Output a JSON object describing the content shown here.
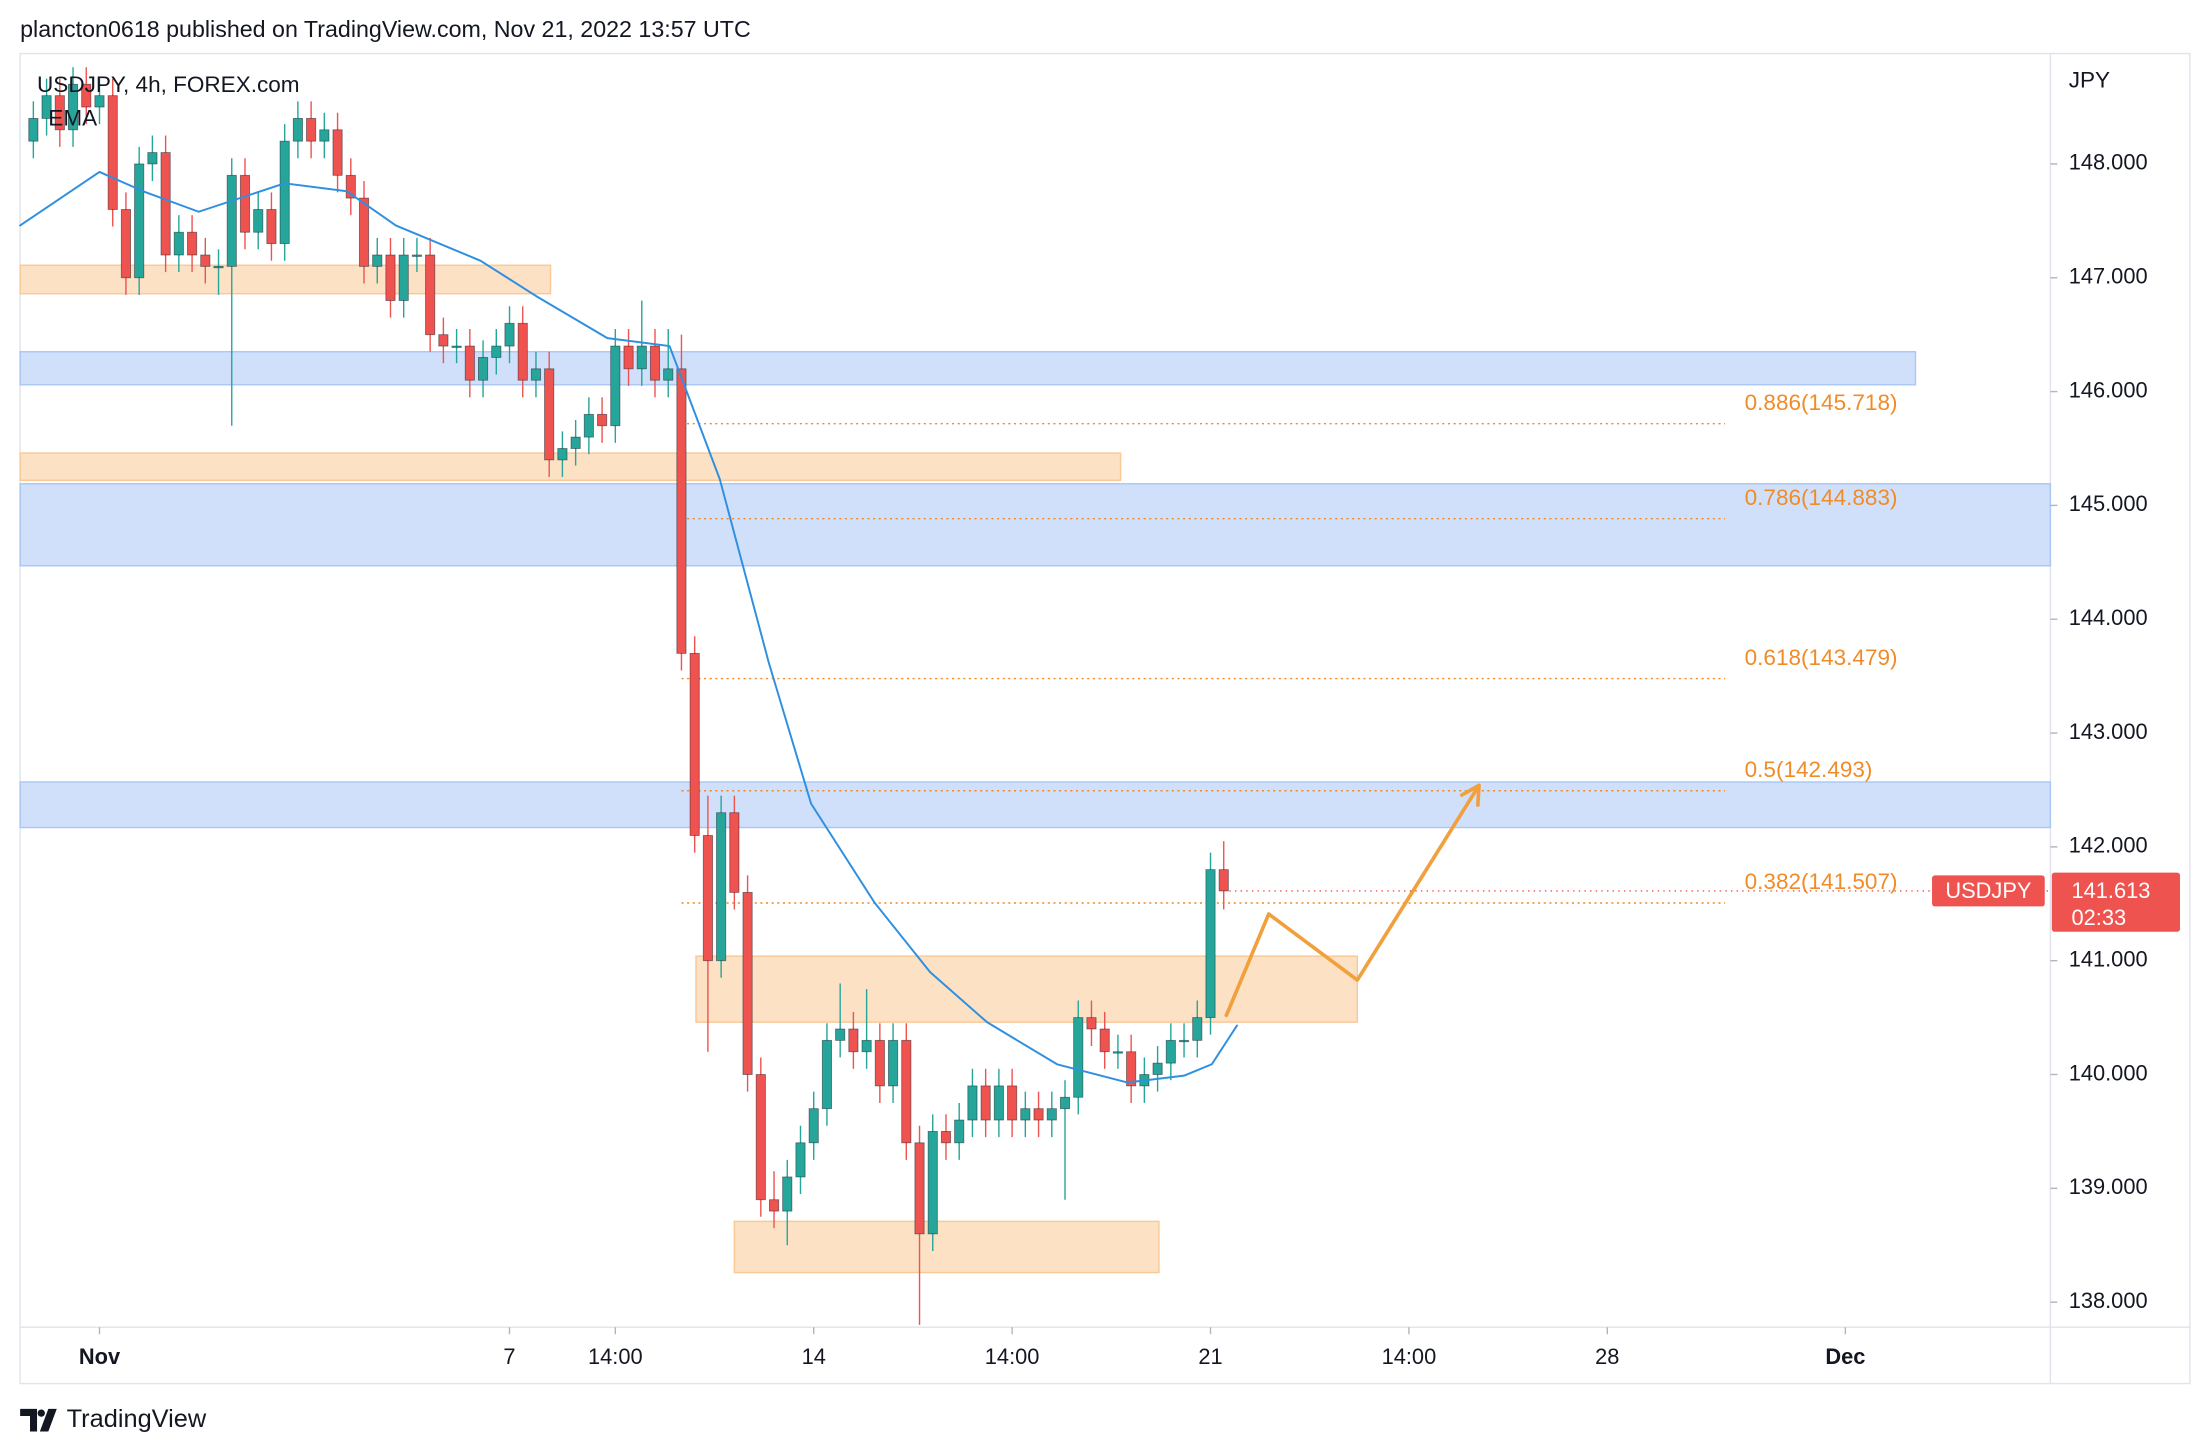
{
  "header": "plancton0618 published on TradingView.com, Nov 21, 2022 13:57 UTC",
  "footer": "TradingView",
  "chart_data": {
    "type": "candlestick",
    "title": "USDJPY, 4h, FOREX.com",
    "indicator": "EMA",
    "currency": "JPY",
    "symbol": "USDJPY",
    "last_price": 141.613,
    "countdown": "02:33",
    "up_color": "#26a69a",
    "down_color": "#ef5350",
    "ema_color": "#2f8fe0",
    "xlim": [
      -30,
      123.5
    ],
    "ylim": [
      137.78,
      148.97
    ],
    "xticks": [
      {
        "value": -24,
        "label": "Nov"
      },
      7,
      {
        "value": 15,
        "label": "14:00"
      },
      {
        "value": 30,
        "label": "14"
      },
      {
        "value": 45,
        "label": "14:00"
      },
      {
        "value": 60,
        "label": "21"
      },
      {
        "value": 75,
        "label": "14:00"
      },
      {
        "value": 90,
        "label": "28"
      },
      {
        "value": 108,
        "label": "Dec"
      }
    ],
    "yticks": [
      {
        "value": 138,
        "label": "138.000"
      },
      {
        "value": 139,
        "label": "139.000"
      },
      {
        "value": 140,
        "label": "140.000"
      },
      {
        "value": 141,
        "label": "141.000"
      },
      {
        "value": 142,
        "label": "142.000"
      },
      {
        "value": 143,
        "label": "143.000"
      },
      {
        "value": 144,
        "label": "144.000"
      },
      {
        "value": 145,
        "label": "145.000"
      },
      {
        "value": 146,
        "label": "146.000"
      },
      {
        "value": 147,
        "label": "147.000"
      },
      {
        "value": 148,
        "label": "148.000"
      }
    ],
    "x": [
      -29,
      -28,
      -27,
      -26,
      -25,
      -24,
      -23,
      -22,
      -21,
      -20,
      -19,
      -18,
      -17,
      -16,
      -15,
      -14,
      -13,
      -12,
      -11,
      -10,
      -9,
      -8,
      -7,
      -6,
      -5,
      -4,
      -3,
      -2,
      -1,
      0,
      1,
      2,
      3,
      4,
      5,
      6,
      7,
      8,
      9,
      10,
      11,
      12,
      13,
      14,
      15,
      16,
      17,
      18,
      19,
      20,
      21,
      22,
      23,
      24,
      25,
      26,
      27,
      28,
      29,
      30,
      31,
      32,
      33,
      34,
      35,
      36,
      37,
      38,
      39,
      40,
      41,
      42,
      43,
      44,
      45,
      46,
      47,
      48,
      49,
      50,
      51,
      52,
      53,
      54,
      55,
      56,
      57,
      58,
      59,
      60,
      61
    ],
    "candles": [
      [
        148.2,
        148.55,
        148.05,
        148.4
      ],
      [
        148.4,
        148.75,
        148.25,
        148.6
      ],
      [
        148.6,
        148.75,
        148.15,
        148.3
      ],
      [
        148.3,
        148.85,
        148.15,
        148.7
      ],
      [
        148.7,
        148.85,
        148.35,
        148.5
      ],
      [
        148.5,
        148.75,
        148.35,
        148.6
      ],
      [
        148.6,
        148.75,
        147.45,
        147.6
      ],
      [
        147.6,
        147.75,
        146.85,
        147.0
      ],
      [
        147.0,
        148.15,
        146.85,
        148.0
      ],
      [
        148.0,
        148.25,
        147.85,
        148.1
      ],
      [
        148.1,
        148.25,
        147.05,
        147.2
      ],
      [
        147.2,
        147.55,
        147.05,
        147.4
      ],
      [
        147.4,
        147.55,
        147.05,
        147.2
      ],
      [
        147.2,
        147.35,
        146.95,
        147.1
      ],
      [
        147.1,
        147.25,
        146.85,
        147.1
      ],
      [
        147.1,
        148.05,
        145.7,
        147.9
      ],
      [
        147.9,
        148.05,
        147.25,
        147.4
      ],
      [
        147.4,
        147.75,
        147.25,
        147.6
      ],
      [
        147.6,
        147.75,
        147.15,
        147.3
      ],
      [
        147.3,
        148.35,
        147.15,
        148.2
      ],
      [
        148.2,
        148.55,
        148.05,
        148.4
      ],
      [
        148.4,
        148.55,
        148.05,
        148.2
      ],
      [
        148.2,
        148.45,
        148.05,
        148.3
      ],
      [
        148.3,
        148.45,
        147.75,
        147.9
      ],
      [
        147.9,
        148.05,
        147.55,
        147.7
      ],
      [
        147.7,
        147.85,
        146.95,
        147.1
      ],
      [
        147.1,
        147.35,
        146.95,
        147.2
      ],
      [
        147.2,
        147.35,
        146.65,
        146.8
      ],
      [
        146.8,
        147.35,
        146.65,
        147.2
      ],
      [
        147.2,
        147.35,
        147.05,
        147.2
      ],
      [
        147.2,
        147.35,
        146.35,
        146.5
      ],
      [
        146.5,
        146.65,
        146.25,
        146.4
      ],
      [
        146.4,
        146.55,
        146.25,
        146.4
      ],
      [
        146.4,
        146.55,
        145.95,
        146.1
      ],
      [
        146.1,
        146.45,
        145.95,
        146.3
      ],
      [
        146.3,
        146.55,
        146.15,
        146.4
      ],
      [
        146.4,
        146.75,
        146.25,
        146.6
      ],
      [
        146.6,
        146.75,
        145.95,
        146.1
      ],
      [
        146.1,
        146.35,
        145.95,
        146.2
      ],
      [
        146.2,
        146.35,
        145.25,
        145.4
      ],
      [
        145.4,
        145.65,
        145.25,
        145.5
      ],
      [
        145.5,
        145.75,
        145.35,
        145.6
      ],
      [
        145.6,
        145.95,
        145.45,
        145.8
      ],
      [
        145.8,
        145.95,
        145.55,
        145.7
      ],
      [
        145.7,
        146.55,
        145.55,
        146.4
      ],
      [
        146.4,
        146.55,
        146.05,
        146.2
      ],
      [
        146.2,
        146.8,
        146.05,
        146.4
      ],
      [
        146.4,
        146.55,
        145.95,
        146.1
      ],
      [
        146.1,
        146.55,
        145.95,
        146.2
      ],
      [
        146.2,
        146.5,
        143.55,
        143.7
      ],
      [
        143.7,
        143.85,
        141.95,
        142.1
      ],
      [
        142.1,
        142.45,
        140.2,
        141.0
      ],
      [
        141.0,
        142.45,
        140.85,
        142.3
      ],
      [
        142.3,
        142.45,
        141.45,
        141.6
      ],
      [
        141.6,
        141.75,
        139.85,
        140.0
      ],
      [
        140.0,
        140.15,
        138.75,
        138.9
      ],
      [
        138.9,
        139.15,
        138.65,
        138.8
      ],
      [
        138.8,
        139.25,
        138.5,
        139.1
      ],
      [
        139.1,
        139.55,
        138.95,
        139.4
      ],
      [
        139.4,
        139.85,
        139.25,
        139.7
      ],
      [
        139.7,
        140.45,
        139.55,
        140.3
      ],
      [
        140.3,
        140.8,
        140.15,
        140.4
      ],
      [
        140.4,
        140.55,
        140.05,
        140.2
      ],
      [
        140.2,
        140.75,
        140.05,
        140.3
      ],
      [
        140.3,
        140.45,
        139.75,
        139.9
      ],
      [
        139.9,
        140.45,
        139.75,
        140.3
      ],
      [
        140.3,
        140.45,
        139.25,
        139.4
      ],
      [
        139.4,
        139.55,
        137.8,
        138.6
      ],
      [
        138.6,
        139.65,
        138.45,
        139.5
      ],
      [
        139.5,
        139.65,
        139.25,
        139.4
      ],
      [
        139.4,
        139.75,
        139.25,
        139.6
      ],
      [
        139.6,
        140.05,
        139.45,
        139.9
      ],
      [
        139.9,
        140.05,
        139.45,
        139.6
      ],
      [
        139.6,
        140.05,
        139.45,
        139.9
      ],
      [
        139.9,
        140.05,
        139.45,
        139.6
      ],
      [
        139.6,
        139.85,
        139.45,
        139.7
      ],
      [
        139.7,
        139.85,
        139.45,
        139.6
      ],
      [
        139.6,
        139.85,
        139.45,
        139.7
      ],
      [
        139.7,
        139.95,
        138.9,
        139.8
      ],
      [
        139.8,
        140.65,
        139.65,
        140.5
      ],
      [
        140.5,
        140.65,
        140.25,
        140.4
      ],
      [
        140.4,
        140.55,
        140.05,
        140.2
      ],
      [
        140.2,
        140.35,
        140.05,
        140.2
      ],
      [
        140.2,
        140.35,
        139.75,
        139.9
      ],
      [
        139.9,
        140.15,
        139.75,
        140.0
      ],
      [
        140.0,
        140.25,
        139.85,
        140.1
      ],
      [
        140.1,
        140.45,
        139.95,
        140.3
      ],
      [
        140.3,
        140.45,
        140.15,
        140.3
      ],
      [
        140.3,
        140.65,
        140.15,
        140.5
      ],
      [
        140.5,
        141.95,
        140.35,
        141.8
      ],
      [
        141.8,
        142.05,
        141.45,
        141.613
      ]
    ],
    "ema": {
      "x": [
        -30,
        -24,
        -20.7,
        -16.5,
        -10,
        -5.3,
        -1.6,
        4.8,
        9,
        14.4,
        19.1,
        22.9,
        26.6,
        29.8,
        34.6,
        38.8,
        43.1,
        48.4,
        53.7,
        58,
        60.1,
        62
      ],
      "values": [
        147.46,
        147.93,
        147.76,
        147.58,
        147.83,
        147.76,
        147.46,
        147.15,
        146.84,
        146.47,
        146.4,
        145.23,
        143.62,
        142.38,
        141.51,
        140.9,
        140.46,
        140.09,
        139.93,
        139.99,
        140.09,
        140.43
      ]
    },
    "zones": [
      {
        "color": "#f9c896",
        "x": [
          -30,
          10.1
        ],
        "range": [
          146.86,
          147.11
        ]
      },
      {
        "color": "#a9c6f5",
        "x": [
          -30,
          113.3
        ],
        "range": [
          146.06,
          146.35
        ]
      },
      {
        "color": "#f9c896",
        "x": [
          -30,
          53.2
        ],
        "range": [
          145.22,
          145.46
        ]
      },
      {
        "color": "#a9c6f5",
        "x": [
          -30,
          123.5
        ],
        "range": [
          144.47,
          145.19
        ]
      },
      {
        "color": "#a9c6f5",
        "x": [
          -30,
          123.5
        ],
        "range": [
          142.17,
          142.57
        ]
      },
      {
        "color": "#f9c896",
        "x": [
          21.1,
          71.1
        ],
        "range": [
          140.46,
          141.04
        ]
      },
      {
        "color": "#f9c896",
        "x": [
          24,
          56.1
        ],
        "range": [
          138.26,
          138.71
        ]
      }
    ],
    "fib_color": "#f08c28",
    "fib_x": [
      20,
      98.9
    ],
    "fib_levels": [
      {
        "label": "0.886(145.718)",
        "value": 145.718
      },
      {
        "label": "0.786(144.883)",
        "value": 144.883
      },
      {
        "label": "0.618(143.479)",
        "value": 143.479
      },
      {
        "label": "0.5(142.493)",
        "value": 142.493
      },
      {
        "label": "0.382(141.507)",
        "value": 141.507
      }
    ],
    "projection": {
      "color": "#f0a03c",
      "x": [
        61.2,
        64.4,
        71.1,
        80.3
      ],
      "values": [
        140.52,
        141.41,
        140.83,
        142.54
      ]
    }
  }
}
